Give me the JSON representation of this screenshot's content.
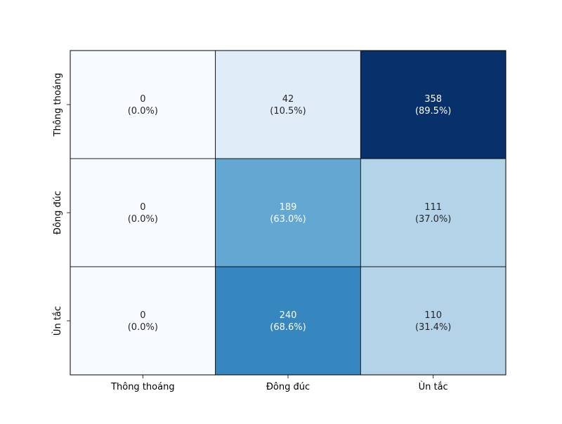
{
  "chart_data": {
    "type": "heatmap",
    "title": "",
    "xlabel": "",
    "ylabel": "",
    "x_categories": [
      "Thông thoáng",
      "Đông đúc",
      "Ùn tắc"
    ],
    "y_categories": [
      "Thông thoáng",
      "Đông đúc",
      "Ùn tắc"
    ],
    "counts": [
      [
        0,
        42,
        358
      ],
      [
        0,
        189,
        111
      ],
      [
        0,
        240,
        110
      ]
    ],
    "percents": [
      [
        "0.0%",
        "10.5%",
        "89.5%"
      ],
      [
        "0.0%",
        "63.0%",
        "37.0%"
      ],
      [
        "0.0%",
        "68.6%",
        "31.4%"
      ]
    ],
    "color_scale": {
      "name": "Blues",
      "min": 0,
      "max": 358,
      "low_color": "#f7fbff",
      "high_color": "#08306b"
    },
    "grid": true,
    "colorbar": false
  }
}
